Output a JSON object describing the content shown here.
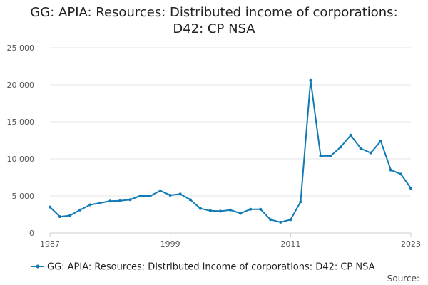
{
  "chart_data": {
    "type": "line",
    "title_lines": [
      "GG: APIA: Resources: Distributed income of corporations:",
      "D42: CP NSA"
    ],
    "x_tick_labels": [
      "1987",
      "1999",
      "2011",
      "2023"
    ],
    "y_tick_labels": [
      "0",
      "5 000",
      "10 000",
      "15 000",
      "20 000",
      "25 000"
    ],
    "ylim": [
      0,
      25000
    ],
    "xlim": [
      1987,
      2023
    ],
    "grid": true,
    "legend_position": "bottom",
    "color": "#0f7ab5",
    "source_label": "Source:",
    "series": [
      {
        "name": "GG: APIA: Resources: Distributed income of corporations: D42: CP NSA",
        "x": [
          1987,
          1988,
          1989,
          1990,
          1991,
          1992,
          1993,
          1994,
          1995,
          1996,
          1997,
          1998,
          1999,
          2000,
          2001,
          2002,
          2003,
          2004,
          2005,
          2006,
          2007,
          2008,
          2009,
          2010,
          2011,
          2012,
          2013,
          2014,
          2015,
          2016,
          2017,
          2018,
          2019,
          2020,
          2021,
          2022,
          2023
        ],
        "values": [
          3500,
          2200,
          2350,
          3100,
          3800,
          4050,
          4300,
          4350,
          4500,
          5000,
          5000,
          5700,
          5100,
          5250,
          4500,
          3300,
          3000,
          2950,
          3100,
          2650,
          3200,
          3200,
          1800,
          1450,
          1800,
          4200,
          20600,
          10400,
          10400,
          11600,
          13200,
          11400,
          10800,
          12400,
          8500,
          7950,
          6050
        ]
      }
    ]
  }
}
